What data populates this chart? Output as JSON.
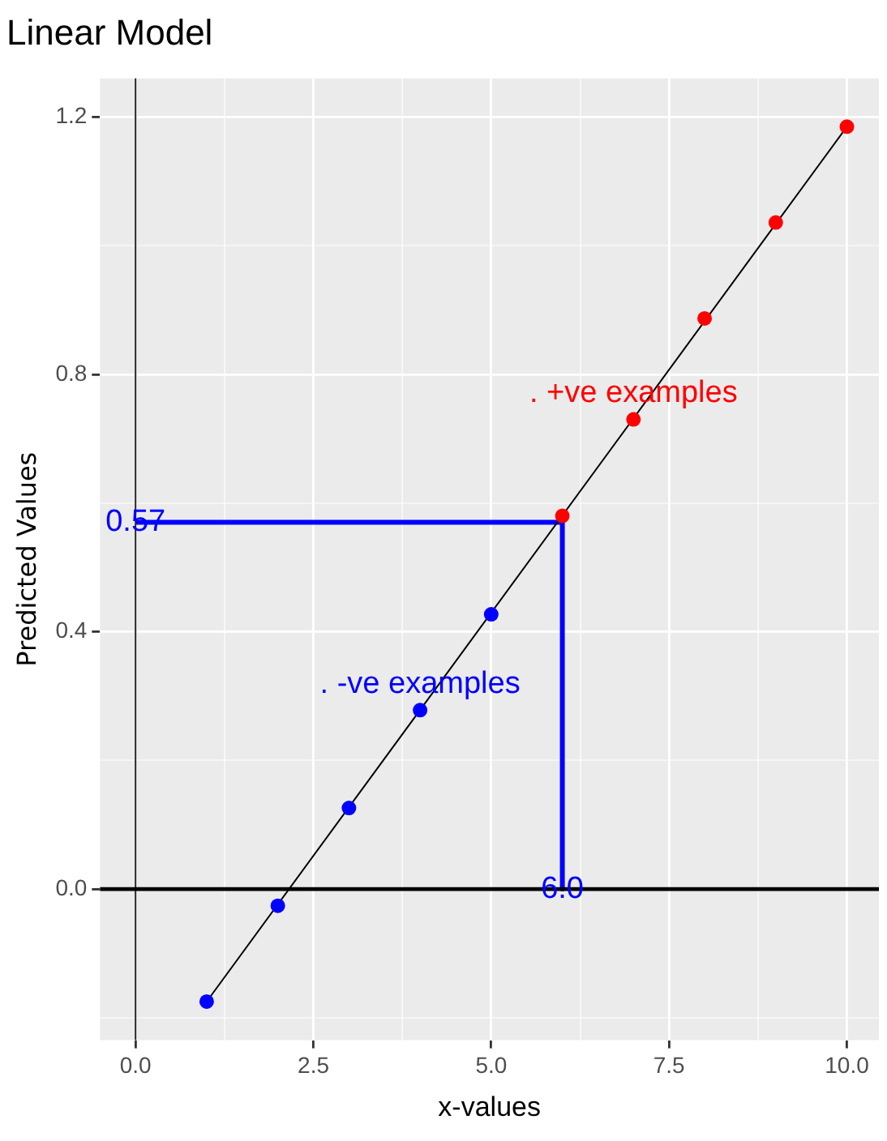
{
  "chart_data": {
    "type": "scatter",
    "title": "Linear Model",
    "xlabel": "x-values",
    "ylabel": "Predicted Values",
    "xlim": [
      -0.5,
      10.45
    ],
    "ylim": [
      -0.235,
      1.26
    ],
    "xticks": [
      {
        "value": 0,
        "label": "0.0"
      },
      {
        "value": 1.25,
        "label": null
      },
      {
        "value": 2.5,
        "label": "2.5"
      },
      {
        "value": 3.75,
        "label": null
      },
      {
        "value": 5,
        "label": "5.0"
      },
      {
        "value": 6.25,
        "label": null
      },
      {
        "value": 7.5,
        "label": "7.5"
      },
      {
        "value": 8.75,
        "label": null
      },
      {
        "value": 10,
        "label": "10.0"
      }
    ],
    "yticks": [
      {
        "value": -0.2,
        "label": null
      },
      {
        "value": 0,
        "label": "0.0"
      },
      {
        "value": 0.2,
        "label": null
      },
      {
        "value": 0.4,
        "label": "0.4"
      },
      {
        "value": 0.6,
        "label": null
      },
      {
        "value": 0.8,
        "label": "0.8"
      },
      {
        "value": 1.0,
        "label": null
      },
      {
        "value": 1.2,
        "label": "1.2"
      }
    ],
    "grid": true,
    "legend": false,
    "ref_lines": [
      {
        "axis": "x",
        "value": 0,
        "color": "#262626"
      },
      {
        "axis": "y",
        "value": 0,
        "color": "#000000"
      }
    ],
    "series": [
      {
        "type": "line",
        "color": "#000000",
        "x": [
          1,
          10
        ],
        "values": [
          -0.175,
          1.185
        ],
        "marker": "none"
      },
      {
        "type": "line",
        "color": "#0000ff",
        "x": [
          0,
          6,
          6
        ],
        "values": [
          0.57,
          0.57,
          0
        ],
        "marker": "none"
      },
      {
        "type": "scatter",
        "color": "#0000ff",
        "x": [
          1,
          2,
          3,
          4,
          5
        ],
        "values": [
          -0.175,
          -0.026,
          0.126,
          0.278,
          0.427
        ],
        "marker": "circle"
      },
      {
        "type": "scatter",
        "color": "#ff0000",
        "x": [
          6,
          7,
          8,
          9,
          10
        ],
        "values": [
          0.58,
          0.73,
          0.887,
          1.036,
          1.185
        ],
        "marker": "circle"
      }
    ],
    "annotations": [
      {
        "text": ". +ve examples",
        "x": 7,
        "y": 0.73
      },
      {
        "text": ". -ve examples",
        "x": 4,
        "y": 0.278
      },
      {
        "text": "0.57",
        "x": 0,
        "y": 0.57
      },
      {
        "text": "6.0",
        "x": 6,
        "y": 0
      }
    ]
  }
}
